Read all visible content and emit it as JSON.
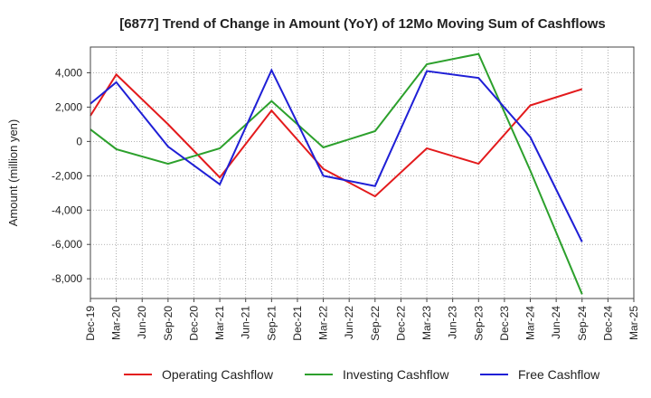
{
  "chart_data": {
    "type": "line",
    "title": "[6877]  Trend of Change in Amount (YoY) of 12Mo Moving Sum of Cashflows",
    "xlabel": "",
    "ylabel": "Amount (million yen)",
    "categories": [
      "Dec-19",
      "Mar-20",
      "Jun-20",
      "Sep-20",
      "Dec-20",
      "Mar-21",
      "Jun-21",
      "Sep-21",
      "Dec-21",
      "Mar-22",
      "Jun-22",
      "Sep-22",
      "Dec-22",
      "Mar-23",
      "Jun-23",
      "Sep-23",
      "Dec-23",
      "Mar-24",
      "Jun-24",
      "Sep-24",
      "Dec-24",
      "Mar-25"
    ],
    "yticks": [
      4000,
      2000,
      0,
      -2000,
      -4000,
      -6000,
      -8000
    ],
    "ytick_labels": [
      "4,000",
      "2,000",
      "0",
      "-2,000",
      "-4,000",
      "-6,000",
      "-8,000"
    ],
    "ylim": [
      -9150,
      5500
    ],
    "grid": true,
    "legend_position": "bottom",
    "series": [
      {
        "name": "Operating Cashflow",
        "color": "#e31a1c",
        "values": [
          1500,
          3900,
          null,
          1000,
          null,
          -2100,
          null,
          1800,
          null,
          -1600,
          null,
          -3200,
          null,
          -400,
          null,
          -1300,
          null,
          2100,
          null,
          3050,
          null,
          null
        ]
      },
      {
        "name": "Investing Cashflow",
        "color": "#2ca02c",
        "values": [
          700,
          -450,
          null,
          -1300,
          null,
          -400,
          null,
          2350,
          null,
          -350,
          null,
          600,
          null,
          4500,
          null,
          5100,
          null,
          -1700,
          null,
          -8900,
          null,
          null
        ]
      },
      {
        "name": "Free Cashflow",
        "color": "#1f1fd6",
        "values": [
          2200,
          3450,
          null,
          -300,
          null,
          -2500,
          null,
          4150,
          null,
          -2000,
          null,
          -2600,
          null,
          4100,
          null,
          3700,
          null,
          250,
          null,
          -5850,
          null,
          null
        ]
      }
    ]
  }
}
